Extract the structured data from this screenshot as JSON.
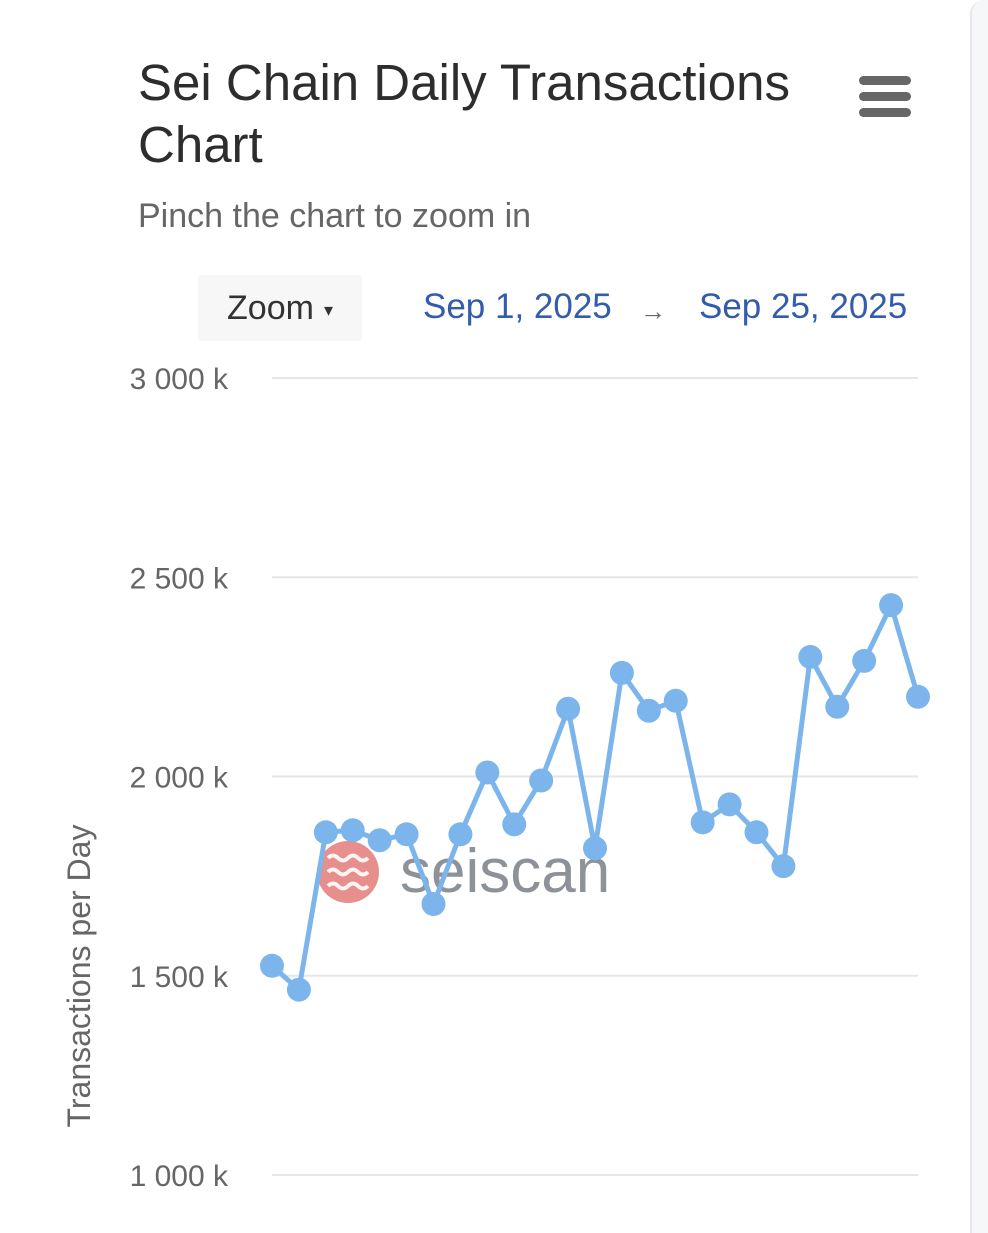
{
  "header": {
    "title": "Sei Chain Daily Transactions Chart",
    "subtitle": "Pinch the chart to zoom in",
    "menu_icon": "hamburger-menu-icon"
  },
  "controls": {
    "zoom_label": "Zoom",
    "zoom_caret": "▾",
    "range_from": "Sep 1, 2025",
    "range_arrow": "→",
    "range_to": "Sep 25, 2025"
  },
  "watermark": {
    "text": "seiscan",
    "logo_color": "#d9534f"
  },
  "chart_data": {
    "type": "line",
    "title": "Sei Chain Daily Transactions Chart",
    "subtitle": "Pinch the chart to zoom in",
    "ylabel": "Transactions per Day",
    "xlabel": "",
    "ylim": [
      1000,
      3000
    ],
    "y_unit": "k",
    "y_ticks": [
      1000,
      1500,
      2000,
      2500,
      3000
    ],
    "y_tick_labels": [
      "1 000 k",
      "1 500 k",
      "2 000 k",
      "2 500 k",
      "3 000 k"
    ],
    "grid": true,
    "legend": false,
    "line_color": "#7cb5ec",
    "x": [
      "2025-09-01",
      "2025-09-02",
      "2025-09-03",
      "2025-09-04",
      "2025-09-05",
      "2025-09-06",
      "2025-09-07",
      "2025-09-08",
      "2025-09-09",
      "2025-09-10",
      "2025-09-11",
      "2025-09-12",
      "2025-09-13",
      "2025-09-14",
      "2025-09-15",
      "2025-09-16",
      "2025-09-17",
      "2025-09-18",
      "2025-09-19",
      "2025-09-20",
      "2025-09-21",
      "2025-09-22",
      "2025-09-23",
      "2025-09-24",
      "2025-09-25"
    ],
    "series": [
      {
        "values": [
          1525,
          1465,
          1860,
          1865,
          1840,
          1855,
          1680,
          1855,
          2010,
          1880,
          1990,
          2170,
          1820,
          2260,
          2165,
          2190,
          1885,
          1930,
          1860,
          1775,
          2300,
          2175,
          2290,
          2430,
          2200
        ]
      }
    ]
  }
}
